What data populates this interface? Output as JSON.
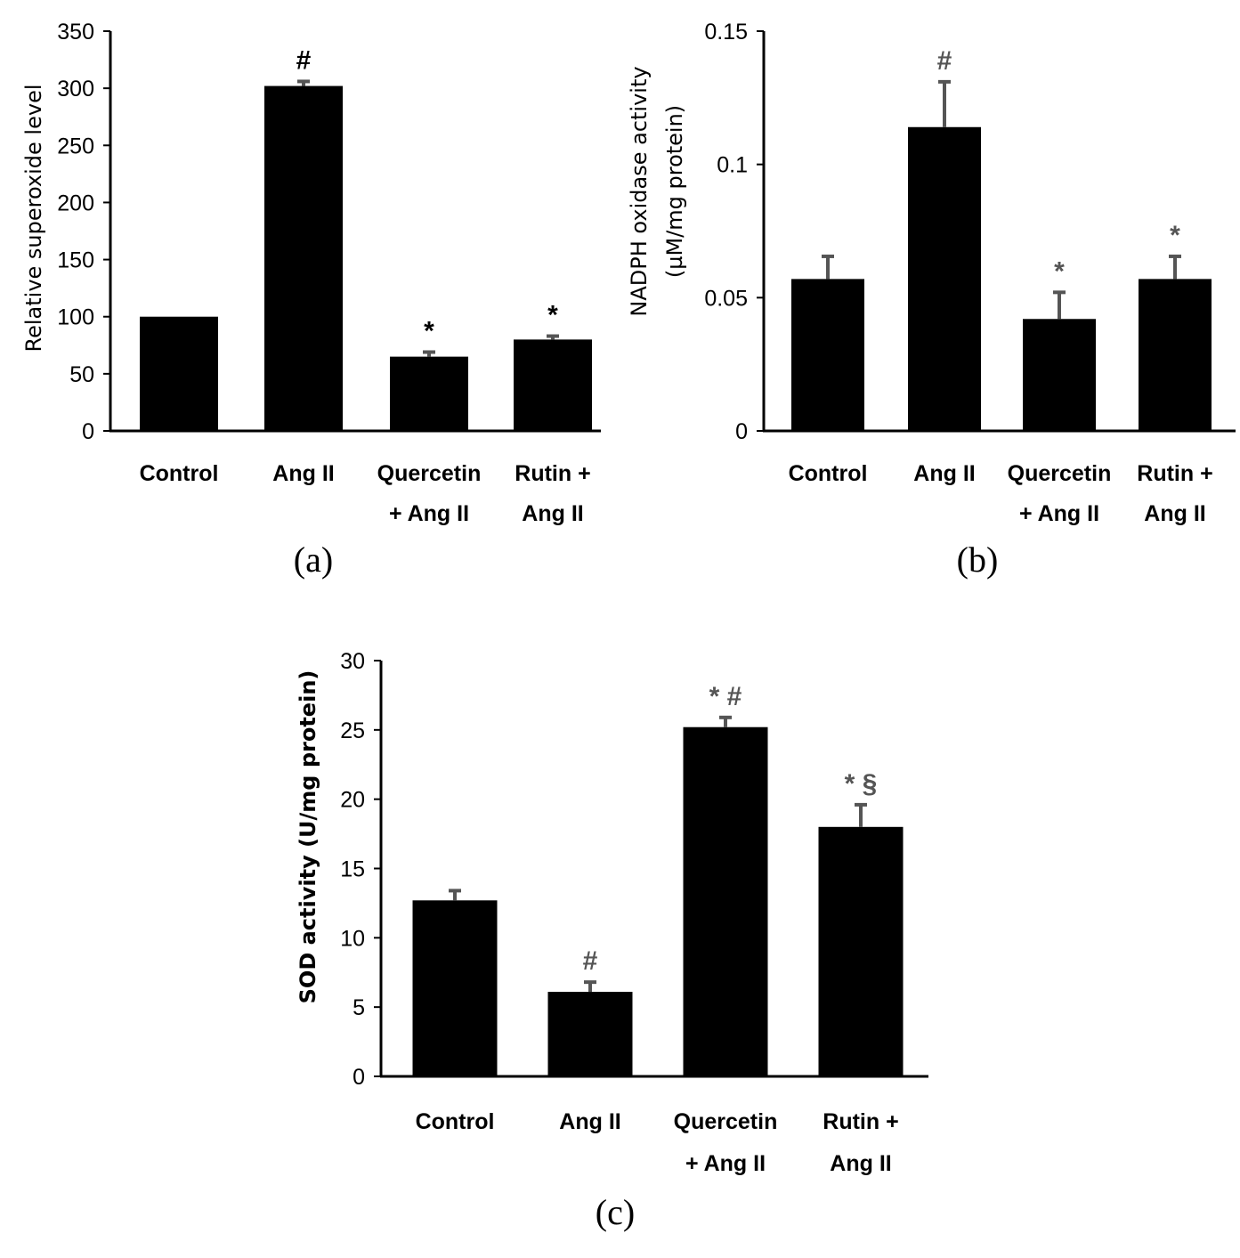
{
  "colors": {
    "bar": "#000000",
    "error": "#555555",
    "sig_black": "#000000",
    "sig_gray": "#555555"
  },
  "chart_data": [
    {
      "type": "bar",
      "panel_label": "(a)",
      "ylabel": "Relative superoxide level",
      "ylabel_lines": [
        "Relative superoxide level"
      ],
      "ylim": [
        0,
        350
      ],
      "yticks": [
        0,
        50,
        100,
        150,
        200,
        250,
        300,
        350
      ],
      "ytick_labels": [
        "0",
        "50",
        "100",
        "150",
        "200",
        "250",
        "300",
        "350"
      ],
      "categories": [
        [
          "Control"
        ],
        [
          "Ang II"
        ],
        [
          "Quercetin",
          "+ Ang II"
        ],
        [
          "Rutin +",
          "Ang II"
        ]
      ],
      "values": [
        100,
        302,
        65,
        80
      ],
      "errors": [
        0,
        4,
        4,
        3
      ],
      "significance": [
        "",
        "#",
        "*",
        "*"
      ]
    },
    {
      "type": "bar",
      "panel_label": "(b)",
      "ylabel": "NADPH oxidase activity (µM/mg protein)",
      "ylabel_lines": [
        "NADPH oxidase activity",
        "(µM/mg protein)"
      ],
      "ylim": [
        0,
        0.15
      ],
      "yticks": [
        0,
        0.05,
        0.1,
        0.15
      ],
      "ytick_labels": [
        "0",
        "0.05",
        "0.1",
        "0.15"
      ],
      "categories": [
        [
          "Control"
        ],
        [
          "Ang II"
        ],
        [
          "Quercetin",
          "+ Ang II"
        ],
        [
          "Rutin +",
          "Ang II"
        ]
      ],
      "values": [
        0.057,
        0.114,
        0.042,
        0.057
      ],
      "errors": [
        0.0085,
        0.017,
        0.01,
        0.0085
      ],
      "significance": [
        "",
        "#",
        "*",
        "*"
      ]
    },
    {
      "type": "bar",
      "panel_label": "(c)",
      "ylabel": "SOD activity (U/mg protein)",
      "ylabel_lines": [
        "SOD activity (U/mg protein)"
      ],
      "ylim": [
        0,
        30
      ],
      "yticks": [
        0,
        5,
        10,
        15,
        20,
        25,
        30
      ],
      "ytick_labels": [
        "0",
        "5",
        "10",
        "15",
        "20",
        "25",
        "30"
      ],
      "categories": [
        [
          "Control"
        ],
        [
          "Ang II"
        ],
        [
          "Quercetin",
          "+ Ang II"
        ],
        [
          "Rutin +",
          "Ang II"
        ]
      ],
      "values": [
        12.7,
        6.1,
        25.2,
        18.0
      ],
      "errors": [
        0.7,
        0.7,
        0.7,
        1.6
      ],
      "significance": [
        "",
        "#",
        "* #",
        "* §"
      ]
    }
  ]
}
